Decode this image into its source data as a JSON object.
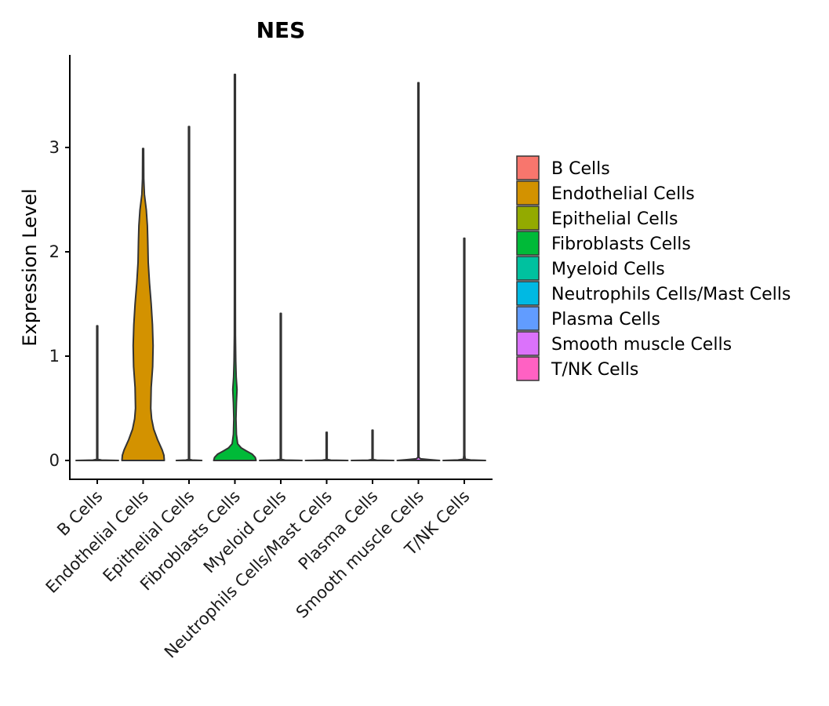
{
  "chart_data": {
    "type": "violin",
    "title": "NES",
    "xlabel": "",
    "ylabel": "Expression Level",
    "ylim": [
      -0.18,
      3.9
    ],
    "yticks": [
      0,
      1,
      2,
      3
    ],
    "categories": [
      "B Cells",
      "Endothelial Cells",
      "Epithelial Cells",
      "Fibroblasts Cells",
      "Myeloid Cells",
      "Neutrophils Cells/Mast Cells",
      "Plasma Cells",
      "Smooth muscle Cells",
      "T/NK Cells"
    ],
    "series": [
      {
        "name": "B Cells",
        "color": "#F8766D",
        "max": 1.29,
        "profile": [
          [
            0,
            1.0
          ],
          [
            0.004,
            0.2
          ],
          [
            0.01,
            0.02
          ],
          [
            0.05,
            0.015
          ],
          [
            0.3,
            0.015
          ],
          [
            1.29,
            0.015
          ]
        ]
      },
      {
        "name": "Endothelial Cells",
        "color": "#D39200",
        "max": 2.99,
        "profile": [
          [
            0,
            1.0
          ],
          [
            0.05,
            0.98
          ],
          [
            0.1,
            0.9
          ],
          [
            0.2,
            0.68
          ],
          [
            0.3,
            0.5
          ],
          [
            0.4,
            0.4
          ],
          [
            0.5,
            0.36
          ],
          [
            0.7,
            0.38
          ],
          [
            0.9,
            0.45
          ],
          [
            1.1,
            0.47
          ],
          [
            1.3,
            0.44
          ],
          [
            1.5,
            0.38
          ],
          [
            1.7,
            0.3
          ],
          [
            1.9,
            0.24
          ],
          [
            2.1,
            0.22
          ],
          [
            2.25,
            0.2
          ],
          [
            2.4,
            0.15
          ],
          [
            2.55,
            0.06
          ],
          [
            2.7,
            0.03
          ],
          [
            2.99,
            0.02
          ]
        ]
      },
      {
        "name": "Epithelial Cells",
        "color": "#93AA00",
        "max": 3.2,
        "profile": [
          [
            0,
            0.6
          ],
          [
            0.004,
            0.15
          ],
          [
            0.01,
            0.02
          ],
          [
            0.05,
            0.015
          ],
          [
            3.2,
            0.015
          ]
        ]
      },
      {
        "name": "Fibroblasts Cells",
        "color": "#00BA38",
        "max": 3.7,
        "profile": [
          [
            0,
            1.0
          ],
          [
            0.03,
            0.96
          ],
          [
            0.06,
            0.82
          ],
          [
            0.09,
            0.55
          ],
          [
            0.12,
            0.3
          ],
          [
            0.16,
            0.13
          ],
          [
            0.25,
            0.07
          ],
          [
            0.4,
            0.05
          ],
          [
            0.55,
            0.07
          ],
          [
            0.68,
            0.1
          ],
          [
            0.8,
            0.06
          ],
          [
            0.95,
            0.04
          ],
          [
            1.2,
            0.025
          ],
          [
            1.6,
            0.018
          ],
          [
            3.7,
            0.015
          ]
        ]
      },
      {
        "name": "Myeloid Cells",
        "color": "#00C19F",
        "max": 1.41,
        "profile": [
          [
            0,
            1.0
          ],
          [
            0.004,
            0.2
          ],
          [
            0.01,
            0.02
          ],
          [
            0.05,
            0.015
          ],
          [
            1.41,
            0.015
          ]
        ]
      },
      {
        "name": "Neutrophils Cells/Mast Cells",
        "color": "#00B9E3",
        "max": 0.27,
        "profile": [
          [
            0,
            1.0
          ],
          [
            0.003,
            0.2
          ],
          [
            0.01,
            0.02
          ],
          [
            0.05,
            0.015
          ],
          [
            0.27,
            0.015
          ]
        ]
      },
      {
        "name": "Plasma Cells",
        "color": "#619CFF",
        "max": 0.29,
        "profile": [
          [
            0,
            1.0
          ],
          [
            0.003,
            0.2
          ],
          [
            0.01,
            0.02
          ],
          [
            0.05,
            0.015
          ],
          [
            0.29,
            0.015
          ]
        ]
      },
      {
        "name": "Smooth muscle Cells",
        "color": "#DB72FB",
        "max": 3.62,
        "profile": [
          [
            0,
            1.0
          ],
          [
            0.008,
            0.55
          ],
          [
            0.016,
            0.1
          ],
          [
            0.03,
            0.02
          ],
          [
            0.05,
            0.015
          ],
          [
            3.62,
            0.015
          ]
        ]
      },
      {
        "name": "T/NK Cells",
        "color": "#FF61C3",
        "max": 2.13,
        "profile": [
          [
            0,
            1.0
          ],
          [
            0.005,
            0.3
          ],
          [
            0.012,
            0.04
          ],
          [
            0.05,
            0.015
          ],
          [
            2.13,
            0.015
          ]
        ]
      }
    ],
    "legend": {
      "position": "right",
      "entries": [
        {
          "label": "B Cells",
          "color": "#F8766D"
        },
        {
          "label": "Endothelial Cells",
          "color": "#D39200"
        },
        {
          "label": "Epithelial Cells",
          "color": "#93AA00"
        },
        {
          "label": "Fibroblasts Cells",
          "color": "#00BA38"
        },
        {
          "label": "Myeloid Cells",
          "color": "#00C19F"
        },
        {
          "label": "Neutrophils Cells/Mast Cells",
          "color": "#00B9E3"
        },
        {
          "label": "Plasma Cells",
          "color": "#619CFF"
        },
        {
          "label": "Smooth muscle Cells",
          "color": "#DB72FB"
        },
        {
          "label": "T/NK Cells",
          "color": "#FF61C3"
        }
      ]
    },
    "grid": false
  }
}
